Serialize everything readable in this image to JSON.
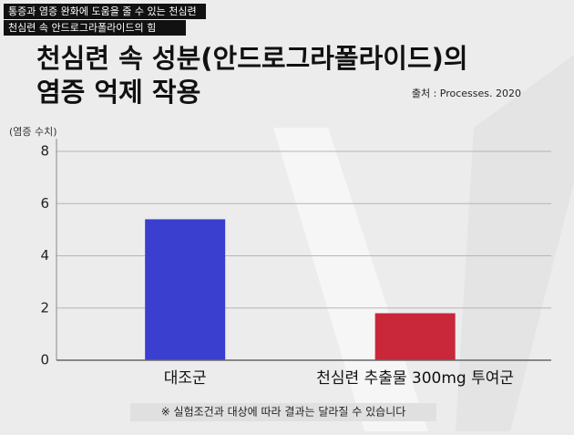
{
  "chart_data": {
    "type": "bar",
    "tags": [
      "통증과 염증 완화에 도움을 줄 수 있는 천심련",
      "천심련 속 안드로그라폴라이드의 힘"
    ],
    "title": [
      "천심련 속 성분(안드로그라폴라이드)의",
      "염증 억제 작용"
    ],
    "source": "출처 : Processes. 2020",
    "y_label": "(염증 수치)",
    "categories": [
      "대조군",
      "천심련 추출물 300mg 투여군"
    ],
    "values": [
      5.4,
      1.8
    ],
    "colors": [
      "#3b3fcf",
      "#c8283a"
    ],
    "ylim": [
      0,
      8
    ],
    "yticks": [
      0,
      2,
      4,
      6,
      8
    ],
    "grid": true,
    "footnote": "※ 실험조건과 대상에 따라 결과는 달라질 수 있습니다"
  }
}
